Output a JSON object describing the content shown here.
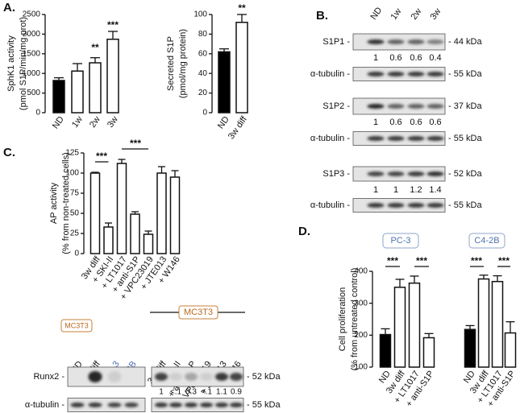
{
  "panels": [
    "A.",
    "B.",
    "C.",
    "D."
  ],
  "chart_data": [
    {
      "type": "bar",
      "ylabel": [
        "SphK1 activity",
        "(pmol S1P/min/mg prot)"
      ],
      "categories": [
        "ND",
        "1w",
        "2w",
        "3w"
      ],
      "values": [
        820,
        1060,
        1270,
        1870
      ],
      "errors": [
        70,
        190,
        130,
        200
      ],
      "colors": [
        "#000000",
        "#ffffff",
        "#ffffff",
        "#ffffff"
      ],
      "ylim": [
        0,
        2500
      ],
      "yticks": [
        0,
        500,
        1000,
        1500,
        2000,
        2500
      ],
      "annotations": [
        "**",
        "***"
      ]
    },
    {
      "type": "bar",
      "ylabel": [
        "Secreted S1P",
        "(pmol/mg protein)"
      ],
      "categories": [
        "ND",
        "3w diff"
      ],
      "values": [
        62,
        92
      ],
      "errors": [
        3,
        8
      ],
      "colors": [
        "#000000",
        "#ffffff"
      ],
      "ylim": [
        0,
        100
      ],
      "yticks": [
        0,
        20,
        40,
        60,
        80,
        100
      ],
      "annotations": [
        "**"
      ]
    },
    {
      "type": "bar",
      "ylabel": [
        "AP activity",
        "(% from non-treated cells)"
      ],
      "categories": [
        "3w diff",
        "+ SKI-II",
        "+ LT1017",
        "+ anti-S1P",
        "+ VPC23019",
        "+ JTE013",
        "+ W146"
      ],
      "values": [
        100,
        33,
        112,
        49,
        24,
        100,
        95
      ],
      "errors": [
        1,
        5,
        5,
        3,
        4,
        8,
        8
      ],
      "colors": [
        "#ffffff",
        "#ffffff",
        "#ffffff",
        "#ffffff",
        "#ffffff",
        "#ffffff",
        "#ffffff"
      ],
      "ylim": [
        0,
        125
      ],
      "yticks": [
        0,
        25,
        50,
        75,
        100,
        125
      ],
      "annotations": [
        "***",
        "***"
      ]
    },
    {
      "type": "bar",
      "ylabel": [
        "Cell proliferation",
        "(% from untreated control)"
      ],
      "categories": [
        "ND",
        "3w diff",
        "+ LT1017",
        "+ anti-S1P"
      ],
      "series": [
        {
          "name": "PC-3",
          "values": [
            202,
            350,
            363,
            192
          ],
          "errors": [
            18,
            25,
            22,
            13
          ]
        },
        {
          "name": "C4-2B",
          "values": [
            218,
            376,
            368,
            207
          ],
          "errors": [
            12,
            12,
            18,
            35
          ]
        }
      ],
      "colors": [
        "#000000",
        "#ffffff",
        "#ffffff",
        "#ffffff"
      ],
      "ylim": [
        100,
        400
      ],
      "yticks": [
        100,
        200,
        300,
        400
      ],
      "annotations": [
        "***",
        "***",
        "***",
        "***"
      ]
    }
  ],
  "blot_b": {
    "lanes": [
      "ND",
      "1w",
      "2w",
      "3w"
    ],
    "rows": [
      {
        "label": "S1P1 -",
        "size": "- 44 kDa",
        "quant": [
          1,
          0.6,
          0.6,
          0.4
        ]
      },
      {
        "label": "α-tubulin -",
        "size": "- 55 kDa"
      },
      {
        "label": "S1P2 -",
        "size": "- 37 kDa",
        "quant": [
          1,
          0.6,
          0.6,
          0.6
        ]
      },
      {
        "label": "α-tubulin -",
        "size": "- 55 kDa"
      },
      {
        "label": "S1P3 -",
        "size": "- 52 kDa",
        "quant": [
          1,
          1,
          1.2,
          1.4
        ]
      },
      {
        "label": "α-tubulin -",
        "size": "- 55 kDa"
      }
    ]
  },
  "blot_c": {
    "cell_line_left": "MC3T3",
    "cell_line_right": "MC3T3",
    "lanes_left": [
      "ND",
      "3w diff",
      "PC-3",
      "C4-2B"
    ],
    "lanes_right": [
      "3w diff",
      "+ SKI-II",
      "+ anti-S1P",
      "+ VPC23019",
      "+ JTE013",
      "+ W146"
    ],
    "rows": [
      {
        "label": "Runx2 -",
        "size": "- 52 kDa",
        "quant": [
          1,
          "<.1",
          0.3,
          "<.1",
          1.1,
          0.9
        ]
      },
      {
        "label": "α-tubulin -",
        "size": "- 55 kDa"
      }
    ]
  }
}
